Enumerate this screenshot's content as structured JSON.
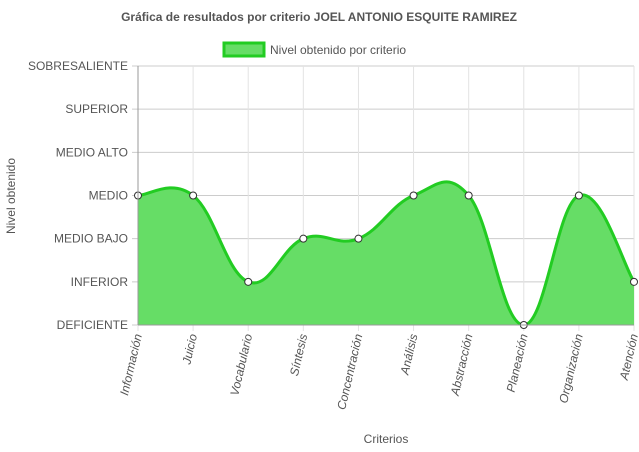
{
  "chart_data": {
    "type": "area",
    "title": "Gráfica de resultados por criterio JOEL ANTONIO ESQUITE RAMIREZ",
    "xlabel": "Criterios",
    "ylabel": "Nivel obtenido",
    "categories": [
      "Información",
      "Juicio",
      "Vocabulario",
      "Síntesis",
      "Concentración",
      "Análisis",
      "Abstracción",
      "Planeación",
      "Organización",
      "Atención"
    ],
    "y_levels": [
      "DEFICIENTE",
      "INFERIOR",
      "MEDIO BAJO",
      "MEDIO",
      "MEDIO ALTO",
      "SUPERIOR",
      "SOBRESALIENTE"
    ],
    "series": [
      {
        "name": "Nivel obtenido por criterio",
        "values": [
          3,
          3,
          1,
          2,
          2,
          3,
          3,
          0,
          3,
          1
        ],
        "fill_color": "#66dd66",
        "line_color": "#22cc22"
      }
    ],
    "ylim": [
      0,
      6
    ],
    "grid": true,
    "legend_position": "top"
  }
}
